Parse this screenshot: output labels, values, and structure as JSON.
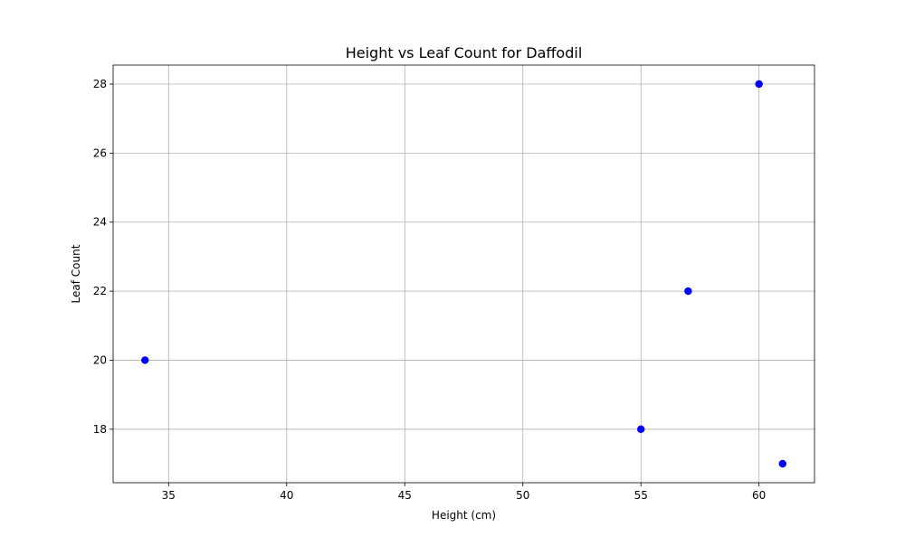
{
  "chart_data": {
    "type": "scatter",
    "title": "Height vs Leaf Count for Daffodil",
    "xlabel": "Height (cm)",
    "ylabel": "Leaf Count",
    "xlim": [
      32.65,
      62.35
    ],
    "ylim": [
      16.45,
      28.55
    ],
    "xticks": [
      35,
      40,
      45,
      50,
      55,
      60
    ],
    "yticks": [
      18,
      20,
      22,
      24,
      26,
      28
    ],
    "grid": true,
    "legend": "none",
    "marker_color": "#0000ff",
    "points": [
      {
        "x": 34,
        "y": 20
      },
      {
        "x": 55,
        "y": 18
      },
      {
        "x": 57,
        "y": 22
      },
      {
        "x": 60,
        "y": 28
      },
      {
        "x": 61,
        "y": 17
      }
    ]
  }
}
